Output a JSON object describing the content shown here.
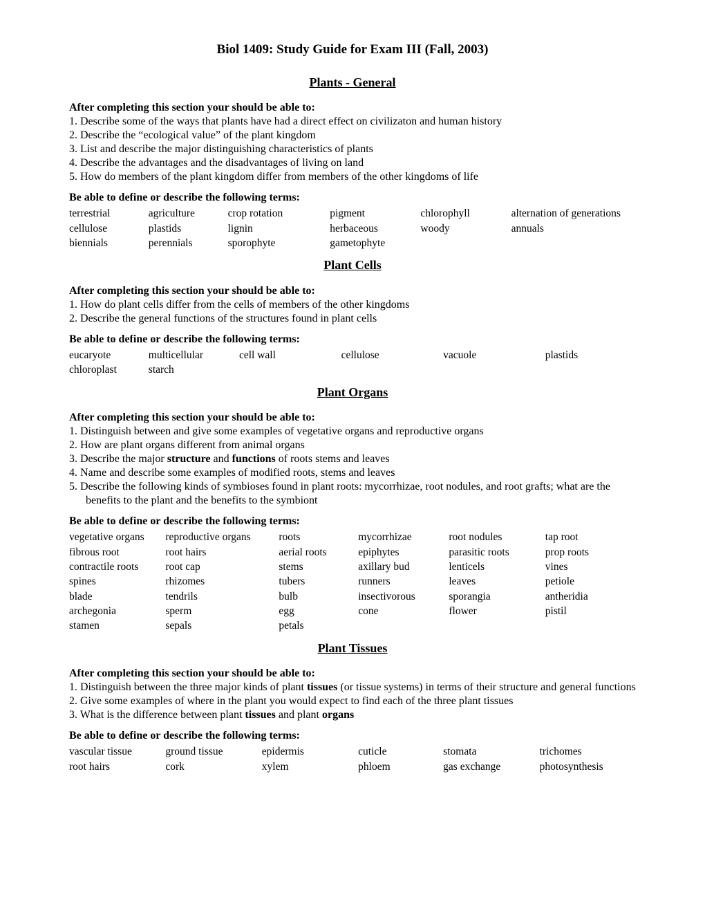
{
  "title": "Biol 1409: Study Guide for Exam III (Fall, 2003)",
  "objectives_label": "After completing this section your should be able to:",
  "terms_label": "Be able to define or describe the following terms:",
  "sections": [
    {
      "heading": "Plants - General",
      "objectives": [
        "1. Describe some of the ways that plants have had a direct effect on civilizaton and human history",
        "2.  Describe the “ecological value” of the plant kingdom",
        "3.  List and describe the major distinguishing characteristics of plants",
        "4.  Describe the advantages and the disadvantages of living on land",
        "5.  How do members of the plant kingdom differ from members of the other kingdoms of life"
      ],
      "terms_cols": 6,
      "terms": [
        [
          "terrestrial",
          "agriculture",
          "crop rotation",
          "pigment",
          "chlorophyll",
          "alternation of generations"
        ],
        [
          "cellulose",
          "plastids",
          "lignin",
          "herbaceous",
          "woody",
          "annuals"
        ],
        [
          "biennials",
          "perennials",
          "sporophyte",
          "gametophyte",
          "",
          ""
        ]
      ],
      "col_widths": [
        "14%",
        "14%",
        "18%",
        "16%",
        "16%",
        "22%"
      ]
    },
    {
      "heading": "Plant Cells",
      "objectives": [
        "1.  How do plant cells differ from the cells of members of the other kingdoms",
        "2.  Describe the general functions of the structures found in plant cells"
      ],
      "terms_cols": 6,
      "terms": [
        [
          "eucaryote",
          "multicellular",
          "cell wall",
          "cellulose",
          "vacuole",
          "plastids"
        ],
        [
          "chloroplast",
          "starch",
          "",
          "",
          "",
          ""
        ]
      ],
      "col_widths": [
        "14%",
        "16%",
        "18%",
        "18%",
        "18%",
        "16%"
      ]
    },
    {
      "heading": "Plant Organs",
      "objectives_html": [
        "1.  Distinguish between and give some examples of vegetative organs and reproductive organs",
        "2.  How are plant organs different from animal organs",
        "3.  Describe the major <b>structure</b> and <b>functions</b> of roots stems and leaves",
        "4. Name and describe some examples of modified roots, stems and leaves",
        "5.  Describe the following kinds of symbioses found in plant roots:  mycorrhizae, root nodules, and root grafts; what are the benefits to the plant and the benefits to the symbiont"
      ],
      "terms_cols": 6,
      "terms": [
        [
          "vegetative organs",
          "reproductive organs",
          "roots",
          "mycorrhizae",
          "root nodules",
          "tap root"
        ],
        [
          "fibrous root",
          "root hairs",
          "aerial roots",
          "epiphytes",
          "parasitic roots",
          "prop roots"
        ],
        [
          "contractile roots",
          "root cap",
          "stems",
          "axillary bud",
          "lenticels",
          "vines"
        ],
        [
          "spines",
          "rhizomes",
          "tubers",
          "runners",
          "leaves",
          "petiole"
        ],
        [
          "blade",
          "tendrils",
          "bulb",
          "insectivorous",
          "sporangia",
          "antheridia"
        ],
        [
          "archegonia",
          "sperm",
          "egg",
          "cone",
          "flower",
          "pistil"
        ],
        [
          "stamen",
          "sepals",
          "petals",
          "",
          "",
          ""
        ]
      ],
      "col_widths": [
        "17%",
        "20%",
        "14%",
        "16%",
        "17%",
        "16%"
      ]
    },
    {
      "heading": "Plant Tissues",
      "objectives_html": [
        "1.  Distinguish between the three major kinds of plant <b>tissues</b> (or tissue systems) in terms of their structure and general functions",
        "2. Give some examples of where in the plant you would expect to find each of the three plant tissues",
        "3.  What is the difference between plant <b>tissues</b> and plant <b>organs</b>"
      ],
      "terms_cols": 6,
      "terms": [
        [
          "vascular tissue",
          "ground tissue",
          "epidermis",
          "cuticle",
          "stomata",
          "trichomes"
        ],
        [
          "root hairs",
          "cork",
          "xylem",
          "phloem",
          "gas exchange",
          "photosynthesis"
        ]
      ],
      "col_widths": [
        "17%",
        "17%",
        "17%",
        "15%",
        "17%",
        "17%"
      ]
    }
  ]
}
